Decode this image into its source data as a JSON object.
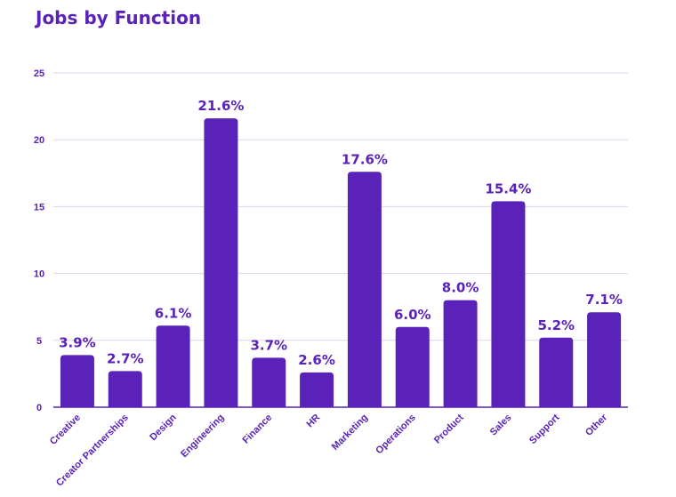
{
  "chart_data": {
    "type": "bar",
    "title": "Jobs by Function",
    "categories": [
      "Creative",
      "Creator Partnerships",
      "Design",
      "Engineering",
      "Finance",
      "HR",
      "Marketing",
      "Operations",
      "Product",
      "Sales",
      "Support",
      "Other"
    ],
    "values": [
      3.9,
      2.7,
      6.1,
      21.6,
      3.7,
      2.6,
      17.6,
      6.0,
      8.0,
      15.4,
      5.2,
      7.1
    ],
    "data_labels": [
      "3.9%",
      "2.7%",
      "6.1%",
      "21.6%",
      "3.7%",
      "2.6%",
      "17.6%",
      "6.0%",
      "8.0%",
      "15.4%",
      "5.2%",
      "7.1%"
    ],
    "yticks": [
      0,
      5,
      10,
      15,
      20,
      25
    ],
    "ylim": [
      0,
      25
    ],
    "xlabel": "",
    "ylabel": "",
    "grid": true,
    "bar_color": "#5a22b8",
    "text_color": "#5a22b8"
  }
}
